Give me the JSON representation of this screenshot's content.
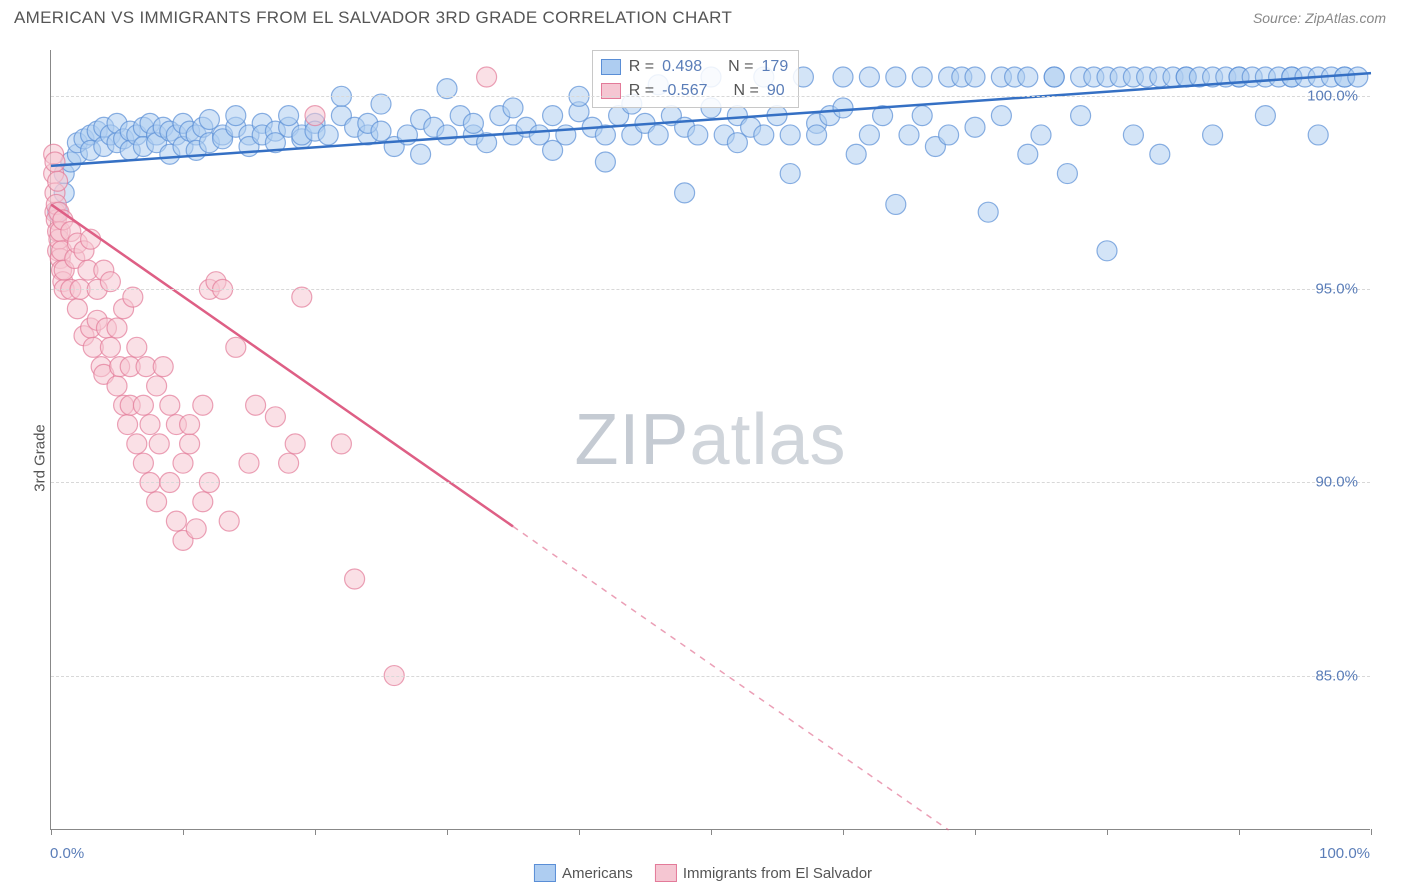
{
  "title": "AMERICAN VS IMMIGRANTS FROM EL SALVADOR 3RD GRADE CORRELATION CHART",
  "source": "Source: ZipAtlas.com",
  "ylabel": "3rd Grade",
  "watermark_zip": "ZIP",
  "watermark_atlas": "atlas",
  "chart": {
    "type": "scatter",
    "x_domain": [
      0,
      100
    ],
    "y_domain": [
      81,
      101.2
    ],
    "y_ticks": [
      85.0,
      90.0,
      95.0,
      100.0
    ],
    "y_tick_labels": [
      "85.0%",
      "90.0%",
      "95.0%",
      "100.0%"
    ],
    "x_tick_positions": [
      0,
      10,
      20,
      30,
      40,
      50,
      60,
      70,
      80,
      90,
      100
    ],
    "x_left_label": "0.0%",
    "x_right_label": "100.0%",
    "background_color": "#ffffff",
    "grid_color": "#d8d8d8",
    "axis_color": "#888888",
    "marker_radius": 10,
    "marker_stroke_width": 1.2,
    "trend_line_width": 2.5,
    "series": [
      {
        "name": "Americans",
        "fill": "#aecdf1",
        "stroke": "#5a8ed6",
        "line_color": "#3570c4",
        "R": "0.498",
        "N": "179",
        "trend": {
          "x1": 0,
          "y1": 98.2,
          "x2": 100,
          "y2": 100.6,
          "dashed_from": null
        },
        "points": [
          [
            0.5,
            97.0
          ],
          [
            1,
            97.5
          ],
          [
            1,
            98.0
          ],
          [
            1.5,
            98.3
          ],
          [
            2,
            98.5
          ],
          [
            2,
            98.8
          ],
          [
            2.5,
            98.9
          ],
          [
            3,
            99.0
          ],
          [
            3,
            98.6
          ],
          [
            3.5,
            99.1
          ],
          [
            4,
            98.7
          ],
          [
            4,
            99.2
          ],
          [
            4.5,
            99.0
          ],
          [
            5,
            99.3
          ],
          [
            5,
            98.8
          ],
          [
            5.5,
            98.9
          ],
          [
            6,
            99.1
          ],
          [
            6,
            98.6
          ],
          [
            6.5,
            99.0
          ],
          [
            7,
            99.2
          ],
          [
            7,
            98.7
          ],
          [
            7.5,
            99.3
          ],
          [
            8,
            99.0
          ],
          [
            8,
            98.8
          ],
          [
            8.5,
            99.2
          ],
          [
            9,
            99.1
          ],
          [
            9,
            98.5
          ],
          [
            9.5,
            99.0
          ],
          [
            10,
            99.3
          ],
          [
            10,
            98.7
          ],
          [
            10.5,
            99.1
          ],
          [
            11,
            99.0
          ],
          [
            11,
            98.6
          ],
          [
            11.5,
            99.2
          ],
          [
            12,
            99.4
          ],
          [
            12,
            98.8
          ],
          [
            13,
            99.0
          ],
          [
            13,
            98.9
          ],
          [
            14,
            99.2
          ],
          [
            14,
            99.5
          ],
          [
            15,
            99.0
          ],
          [
            15,
            98.7
          ],
          [
            16,
            99.3
          ],
          [
            16,
            99.0
          ],
          [
            17,
            99.1
          ],
          [
            17,
            98.8
          ],
          [
            18,
            99.2
          ],
          [
            18,
            99.5
          ],
          [
            19,
            98.9
          ],
          [
            19,
            99.0
          ],
          [
            20,
            99.3
          ],
          [
            20,
            99.1
          ],
          [
            21,
            99.0
          ],
          [
            22,
            99.5
          ],
          [
            22,
            100.0
          ],
          [
            23,
            99.2
          ],
          [
            24,
            99.0
          ],
          [
            24,
            99.3
          ],
          [
            25,
            99.8
          ],
          [
            25,
            99.1
          ],
          [
            26,
            98.7
          ],
          [
            27,
            99.0
          ],
          [
            28,
            99.4
          ],
          [
            28,
            98.5
          ],
          [
            29,
            99.2
          ],
          [
            30,
            99.0
          ],
          [
            30,
            100.2
          ],
          [
            31,
            99.5
          ],
          [
            32,
            99.0
          ],
          [
            32,
            99.3
          ],
          [
            33,
            98.8
          ],
          [
            34,
            99.5
          ],
          [
            35,
            99.0
          ],
          [
            35,
            99.7
          ],
          [
            36,
            99.2
          ],
          [
            37,
            99.0
          ],
          [
            38,
            99.5
          ],
          [
            38,
            98.6
          ],
          [
            39,
            99.0
          ],
          [
            40,
            99.6
          ],
          [
            40,
            100.0
          ],
          [
            41,
            99.2
          ],
          [
            42,
            99.0
          ],
          [
            42,
            98.3
          ],
          [
            43,
            99.5
          ],
          [
            44,
            99.0
          ],
          [
            44,
            99.8
          ],
          [
            45,
            99.3
          ],
          [
            46,
            100.3
          ],
          [
            46,
            99.0
          ],
          [
            47,
            99.5
          ],
          [
            48,
            99.2
          ],
          [
            48,
            97.5
          ],
          [
            49,
            99.0
          ],
          [
            50,
            99.7
          ],
          [
            50,
            100.5
          ],
          [
            51,
            99.0
          ],
          [
            52,
            99.5
          ],
          [
            52,
            98.8
          ],
          [
            53,
            99.2
          ],
          [
            54,
            99.0
          ],
          [
            54,
            100.5
          ],
          [
            55,
            99.5
          ],
          [
            56,
            99.0
          ],
          [
            56,
            98.0
          ],
          [
            57,
            100.5
          ],
          [
            58,
            99.3
          ],
          [
            58,
            99.0
          ],
          [
            59,
            99.5
          ],
          [
            60,
            99.7
          ],
          [
            60,
            100.5
          ],
          [
            61,
            98.5
          ],
          [
            62,
            99.0
          ],
          [
            62,
            100.5
          ],
          [
            63,
            99.5
          ],
          [
            64,
            100.5
          ],
          [
            64,
            97.2
          ],
          [
            65,
            99.0
          ],
          [
            66,
            100.5
          ],
          [
            66,
            99.5
          ],
          [
            67,
            98.7
          ],
          [
            68,
            100.5
          ],
          [
            68,
            99.0
          ],
          [
            69,
            100.5
          ],
          [
            70,
            99.2
          ],
          [
            70,
            100.5
          ],
          [
            71,
            97.0
          ],
          [
            72,
            100.5
          ],
          [
            72,
            99.5
          ],
          [
            73,
            100.5
          ],
          [
            74,
            98.5
          ],
          [
            74,
            100.5
          ],
          [
            75,
            99.0
          ],
          [
            76,
            100.5
          ],
          [
            76,
            100.5
          ],
          [
            77,
            98.0
          ],
          [
            78,
            100.5
          ],
          [
            78,
            99.5
          ],
          [
            79,
            100.5
          ],
          [
            80,
            100.5
          ],
          [
            80,
            96.0
          ],
          [
            81,
            100.5
          ],
          [
            82,
            99.0
          ],
          [
            82,
            100.5
          ],
          [
            83,
            100.5
          ],
          [
            84,
            100.5
          ],
          [
            84,
            98.5
          ],
          [
            85,
            100.5
          ],
          [
            86,
            100.5
          ],
          [
            86,
            100.5
          ],
          [
            87,
            100.5
          ],
          [
            88,
            100.5
          ],
          [
            88,
            99.0
          ],
          [
            89,
            100.5
          ],
          [
            90,
            100.5
          ],
          [
            90,
            100.5
          ],
          [
            91,
            100.5
          ],
          [
            92,
            100.5
          ],
          [
            92,
            99.5
          ],
          [
            93,
            100.5
          ],
          [
            94,
            100.5
          ],
          [
            94,
            100.5
          ],
          [
            95,
            100.5
          ],
          [
            96,
            100.5
          ],
          [
            96,
            99.0
          ],
          [
            97,
            100.5
          ],
          [
            98,
            100.5
          ],
          [
            98,
            100.5
          ],
          [
            99,
            100.5
          ]
        ]
      },
      {
        "name": "Immigrants from El Salvador",
        "fill": "#f5c6d2",
        "stroke": "#e37a99",
        "line_color": "#de5f85",
        "R": "-0.567",
        "N": "90",
        "trend": {
          "x1": 0,
          "y1": 97.2,
          "x2": 68,
          "y2": 81.0,
          "dashed_from": 35
        },
        "points": [
          [
            0.2,
            98.5
          ],
          [
            0.2,
            98.0
          ],
          [
            0.3,
            97.5
          ],
          [
            0.3,
            97.0
          ],
          [
            0.3,
            98.3
          ],
          [
            0.4,
            96.8
          ],
          [
            0.4,
            97.2
          ],
          [
            0.5,
            96.5
          ],
          [
            0.5,
            97.8
          ],
          [
            0.5,
            96.0
          ],
          [
            0.6,
            97.0
          ],
          [
            0.6,
            96.3
          ],
          [
            0.7,
            95.8
          ],
          [
            0.7,
            96.5
          ],
          [
            0.8,
            95.5
          ],
          [
            0.8,
            96.0
          ],
          [
            0.9,
            95.2
          ],
          [
            0.9,
            96.8
          ],
          [
            1.0,
            95.0
          ],
          [
            1.0,
            95.5
          ],
          [
            1.5,
            96.5
          ],
          [
            1.5,
            95.0
          ],
          [
            1.8,
            95.8
          ],
          [
            2,
            96.2
          ],
          [
            2,
            94.5
          ],
          [
            2.2,
            95.0
          ],
          [
            2.5,
            96.0
          ],
          [
            2.5,
            93.8
          ],
          [
            2.8,
            95.5
          ],
          [
            3,
            94.0
          ],
          [
            3,
            96.3
          ],
          [
            3.2,
            93.5
          ],
          [
            3.5,
            95.0
          ],
          [
            3.5,
            94.2
          ],
          [
            3.8,
            93.0
          ],
          [
            4,
            95.5
          ],
          [
            4,
            92.8
          ],
          [
            4.2,
            94.0
          ],
          [
            4.5,
            93.5
          ],
          [
            4.5,
            95.2
          ],
          [
            5,
            92.5
          ],
          [
            5,
            94.0
          ],
          [
            5.2,
            93.0
          ],
          [
            5.5,
            92.0
          ],
          [
            5.5,
            94.5
          ],
          [
            5.8,
            91.5
          ],
          [
            6,
            93.0
          ],
          [
            6,
            92.0
          ],
          [
            6.2,
            94.8
          ],
          [
            6.5,
            91.0
          ],
          [
            6.5,
            93.5
          ],
          [
            7,
            92.0
          ],
          [
            7,
            90.5
          ],
          [
            7.2,
            93.0
          ],
          [
            7.5,
            91.5
          ],
          [
            7.5,
            90.0
          ],
          [
            8,
            92.5
          ],
          [
            8,
            89.5
          ],
          [
            8.2,
            91.0
          ],
          [
            8.5,
            93.0
          ],
          [
            9,
            90.0
          ],
          [
            9,
            92.0
          ],
          [
            9.5,
            89.0
          ],
          [
            9.5,
            91.5
          ],
          [
            10,
            90.5
          ],
          [
            10,
            88.5
          ],
          [
            10.5,
            91.0
          ],
          [
            10.5,
            91.5
          ],
          [
            11,
            88.8
          ],
          [
            11.5,
            92.0
          ],
          [
            11.5,
            89.5
          ],
          [
            12,
            95.0
          ],
          [
            12,
            90.0
          ],
          [
            12.5,
            95.2
          ],
          [
            13,
            95.0
          ],
          [
            13.5,
            89.0
          ],
          [
            14,
            93.5
          ],
          [
            15,
            90.5
          ],
          [
            15.5,
            92.0
          ],
          [
            17,
            91.7
          ],
          [
            18,
            90.5
          ],
          [
            18.5,
            91.0
          ],
          [
            19,
            94.8
          ],
          [
            20,
            99.5
          ],
          [
            22,
            91.0
          ],
          [
            23,
            87.5
          ],
          [
            26,
            85.0
          ],
          [
            33,
            100.5
          ]
        ]
      }
    ],
    "legend": {
      "series1_label": "Americans",
      "series2_label": "Immigrants from El Salvador"
    },
    "stats_box": {
      "left_pct": 41,
      "top_pct": 0,
      "R_label": "R =",
      "N_label": "N ="
    }
  }
}
